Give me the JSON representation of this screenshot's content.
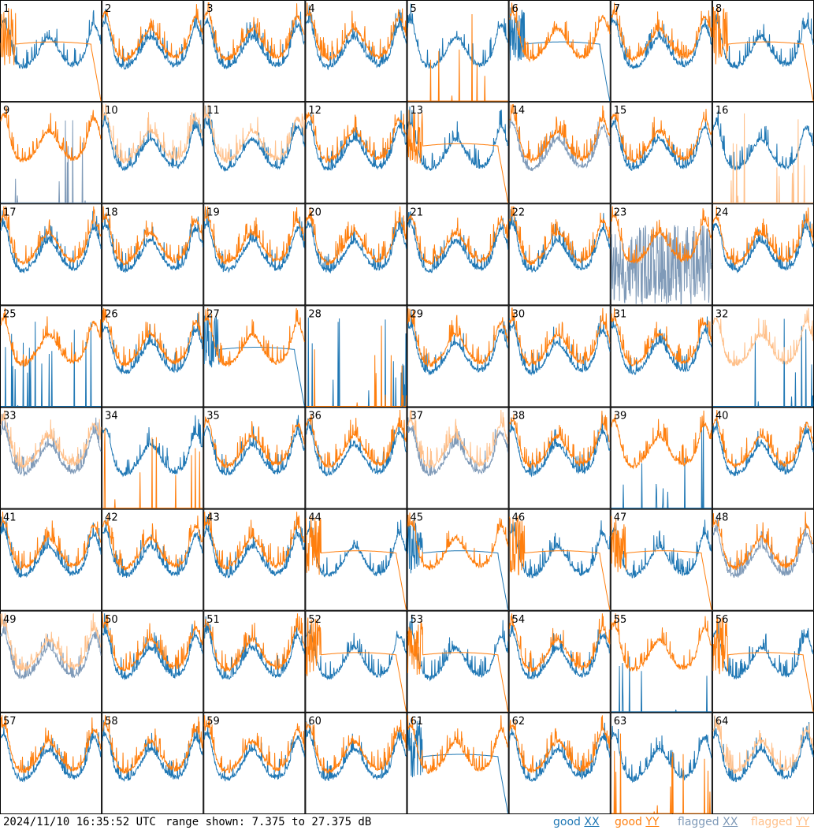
{
  "chart_data": {
    "type": "line",
    "layout_grid": "8x8",
    "panel_count": 64,
    "ylim_db": [
      7.375,
      27.375
    ],
    "series_types": [
      "good XX",
      "good YY",
      "flagged XX",
      "flagged YY"
    ],
    "colors": {
      "good_xx": "#1f77b4",
      "good_yy": "#ff7f0e",
      "flagged_xx": "#7f9ab8",
      "flagged_yy": "#ffc08a"
    },
    "panels": [
      {
        "label": "1",
        "xx": "good",
        "yy": "good",
        "yy_shape": "rolloff"
      },
      {
        "label": "2",
        "xx": "good",
        "yy": "good"
      },
      {
        "label": "3",
        "xx": "good",
        "yy": "good"
      },
      {
        "label": "4",
        "xx": "good",
        "yy": "good"
      },
      {
        "label": "5",
        "xx": "good",
        "yy": "good",
        "yy_shape": "spikes"
      },
      {
        "label": "6",
        "xx": "good",
        "yy": "good",
        "xx_shape": "rolloff"
      },
      {
        "label": "7",
        "xx": "good",
        "yy": "good"
      },
      {
        "label": "8",
        "xx": "good",
        "yy": "good",
        "yy_shape": "rolloff"
      },
      {
        "label": "9",
        "xx": "flagged",
        "yy": "good",
        "xx_shape": "spikes"
      },
      {
        "label": "10",
        "xx": "good",
        "yy": "flagged"
      },
      {
        "label": "11",
        "xx": "good",
        "yy": "flagged"
      },
      {
        "label": "12",
        "xx": "good",
        "yy": "good"
      },
      {
        "label": "13",
        "xx": "good",
        "yy": "good",
        "yy_shape": "rolloff"
      },
      {
        "label": "14",
        "xx": "flagged",
        "yy": "good"
      },
      {
        "label": "15",
        "xx": "good",
        "yy": "good"
      },
      {
        "label": "16",
        "xx": "good",
        "yy": "flagged",
        "yy_shape": "spikes"
      },
      {
        "label": "17",
        "xx": "good",
        "yy": "good"
      },
      {
        "label": "18",
        "xx": "good",
        "yy": "good"
      },
      {
        "label": "19",
        "xx": "good",
        "yy": "good"
      },
      {
        "label": "20",
        "xx": "good",
        "yy": "good"
      },
      {
        "label": "21",
        "xx": "good",
        "yy": "good"
      },
      {
        "label": "22",
        "xx": "good",
        "yy": "good"
      },
      {
        "label": "23",
        "xx": "flagged",
        "yy": "good",
        "xx_shape": "noisy"
      },
      {
        "label": "24",
        "xx": "good",
        "yy": "good"
      },
      {
        "label": "25",
        "xx": "good",
        "yy": "good",
        "xx_shape": "spikes"
      },
      {
        "label": "26",
        "xx": "good",
        "yy": "good"
      },
      {
        "label": "27",
        "xx": "good",
        "yy": "good",
        "xx_shape": "rolloff"
      },
      {
        "label": "28",
        "xx": "good",
        "yy": "good",
        "xx_shape": "spikes",
        "yy_shape": "spikes"
      },
      {
        "label": "29",
        "xx": "good",
        "yy": "good"
      },
      {
        "label": "30",
        "xx": "good",
        "yy": "good"
      },
      {
        "label": "31",
        "xx": "good",
        "yy": "good"
      },
      {
        "label": "32",
        "xx": "good",
        "yy": "flagged",
        "xx_shape": "spikes"
      },
      {
        "label": "33",
        "xx": "flagged",
        "yy": "flagged"
      },
      {
        "label": "34",
        "xx": "good",
        "yy": "good",
        "yy_shape": "spikes"
      },
      {
        "label": "35",
        "xx": "good",
        "yy": "good"
      },
      {
        "label": "36",
        "xx": "good",
        "yy": "good"
      },
      {
        "label": "37",
        "xx": "flagged",
        "yy": "flagged"
      },
      {
        "label": "38",
        "xx": "good",
        "yy": "good"
      },
      {
        "label": "39",
        "xx": "good",
        "yy": "good",
        "xx_shape": "spikes"
      },
      {
        "label": "40",
        "xx": "good",
        "yy": "good"
      },
      {
        "label": "41",
        "xx": "good",
        "yy": "good"
      },
      {
        "label": "42",
        "xx": "good",
        "yy": "good"
      },
      {
        "label": "43",
        "xx": "good",
        "yy": "good"
      },
      {
        "label": "44",
        "xx": "good",
        "yy": "good",
        "yy_shape": "rolloff"
      },
      {
        "label": "45",
        "xx": "good",
        "yy": "good",
        "xx_shape": "rolloff"
      },
      {
        "label": "46",
        "xx": "good",
        "yy": "good",
        "yy_shape": "rolloff"
      },
      {
        "label": "47",
        "xx": "good",
        "yy": "good",
        "yy_shape": "rolloff"
      },
      {
        "label": "48",
        "xx": "flagged",
        "yy": "good"
      },
      {
        "label": "49",
        "xx": "flagged",
        "yy": "flagged"
      },
      {
        "label": "50",
        "xx": "good",
        "yy": "good"
      },
      {
        "label": "51",
        "xx": "good",
        "yy": "good"
      },
      {
        "label": "52",
        "xx": "good",
        "yy": "good",
        "yy_shape": "rolloff"
      },
      {
        "label": "53",
        "xx": "good",
        "yy": "good",
        "yy_shape": "rolloff"
      },
      {
        "label": "54",
        "xx": "good",
        "yy": "good"
      },
      {
        "label": "55",
        "xx": "good",
        "yy": "good",
        "xx_shape": "spikes"
      },
      {
        "label": "56",
        "xx": "good",
        "yy": "good",
        "yy_shape": "rolloff"
      },
      {
        "label": "57",
        "xx": "good",
        "yy": "good"
      },
      {
        "label": "58",
        "xx": "good",
        "yy": "good"
      },
      {
        "label": "59",
        "xx": "good",
        "yy": "good"
      },
      {
        "label": "60",
        "xx": "good",
        "yy": "good"
      },
      {
        "label": "61",
        "xx": "good",
        "yy": "good",
        "xx_shape": "rolloff"
      },
      {
        "label": "62",
        "xx": "good",
        "yy": "good"
      },
      {
        "label": "63",
        "xx": "good",
        "yy": "good",
        "yy_shape": "spikes"
      },
      {
        "label": "64",
        "xx": "good",
        "yy": "flagged"
      }
    ]
  },
  "footer": {
    "timestamp": "2024/11/10 16:35:52 UTC",
    "range_text": "range shown: 7.375 to 27.375 dB"
  },
  "legend": {
    "good_xx": {
      "prefix": "good",
      "pol": "XX",
      "color": "#1f77b4"
    },
    "good_yy": {
      "prefix": "good",
      "pol": "YY",
      "color": "#ff7f0e"
    },
    "flagged_xx": {
      "prefix": "flagged",
      "pol": "XX",
      "color": "#7f9ab8"
    },
    "flagged_yy": {
      "prefix": "flagged",
      "pol": "YY",
      "color": "#ffc08a"
    }
  }
}
